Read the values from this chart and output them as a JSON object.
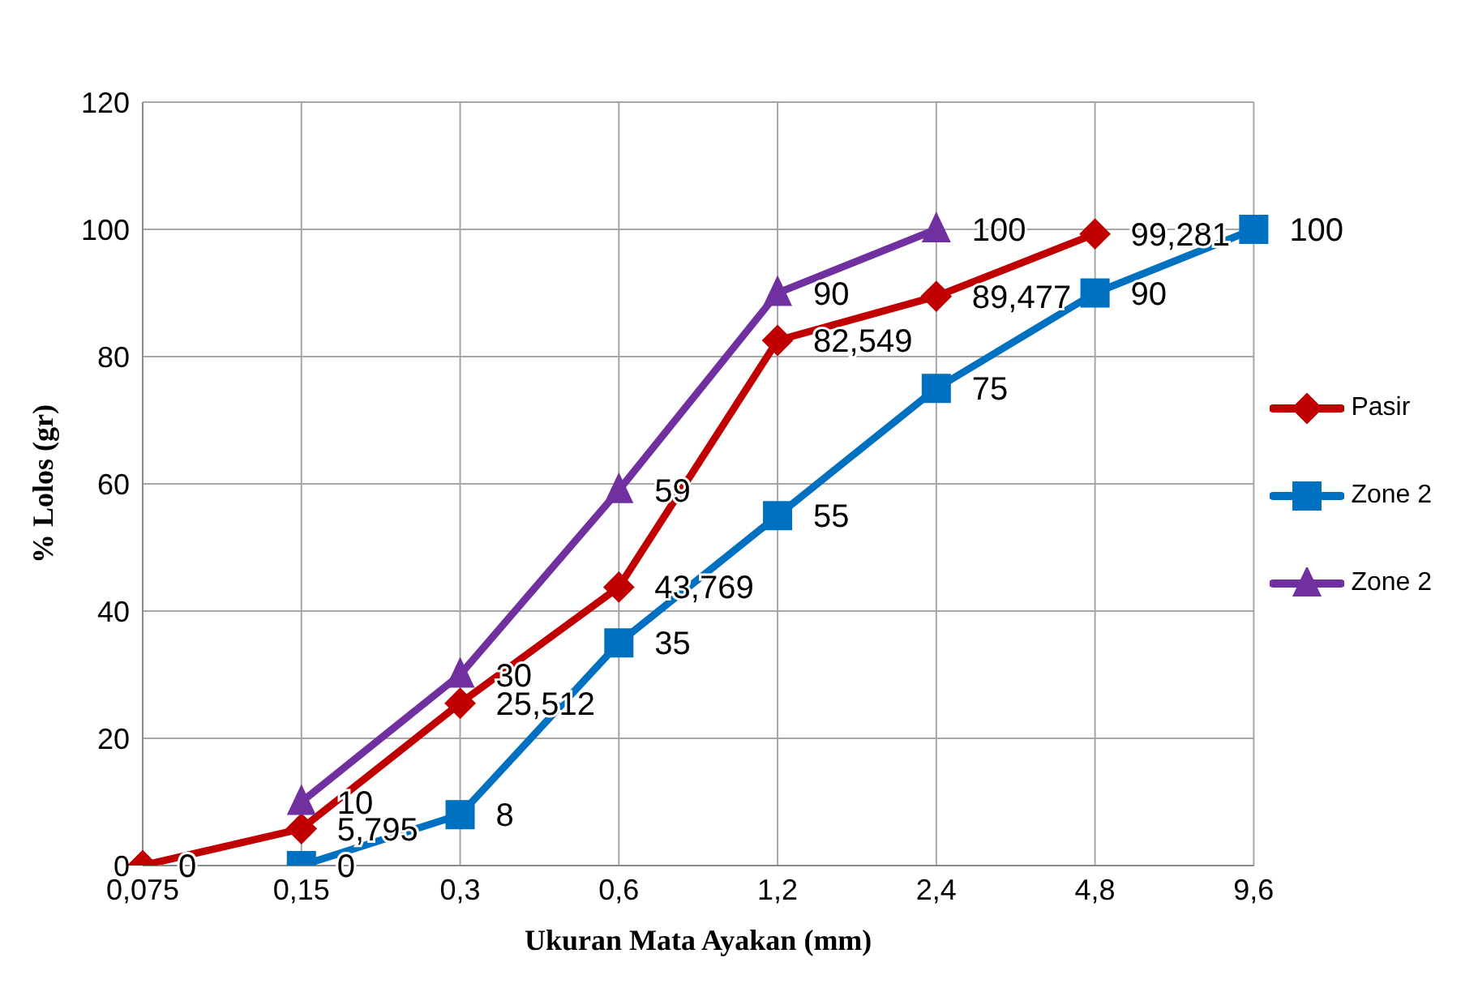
{
  "chart_data": {
    "type": "line",
    "xlabel": "Ukuran Mata Ayakan (mm)",
    "ylabel": "% Lolos (gr)",
    "categories": [
      "0,075",
      "0,15",
      "0,3",
      "0,6",
      "1,2",
      "2,4",
      "4,8",
      "9,6"
    ],
    "series": [
      {
        "name": "Pasir",
        "color": "#c00000",
        "marker": "diamond",
        "values": [
          0,
          5.795,
          25.512,
          43.769,
          82.549,
          89.477,
          99.281,
          null
        ],
        "value_labels": [
          "0",
          "5,795",
          "25,512",
          "43,769",
          "82,549",
          "89,477",
          "99,281",
          null
        ]
      },
      {
        "name": "Zone 2",
        "color": "#0070c0",
        "marker": "square",
        "values": [
          null,
          0,
          8,
          35,
          55,
          75,
          90,
          100
        ],
        "value_labels": [
          null,
          "0",
          "8",
          "35",
          "55",
          "75",
          "90",
          "100"
        ]
      },
      {
        "name": "Zone 2",
        "color": "#7030a0",
        "marker": "triangle",
        "values": [
          null,
          10,
          30,
          59,
          90,
          100,
          null,
          null
        ],
        "value_labels": [
          null,
          "10",
          "30",
          "59",
          "90",
          "100",
          null,
          null
        ]
      }
    ],
    "ylim": [
      0,
      120
    ],
    "yticks": [
      0,
      20,
      40,
      60,
      80,
      100,
      120
    ],
    "grid": true,
    "legend": "right",
    "line_style": "solid"
  }
}
